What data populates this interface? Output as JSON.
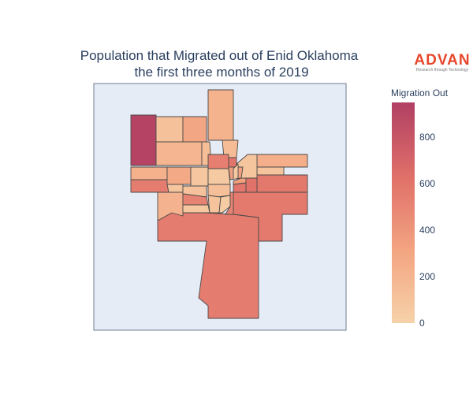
{
  "title_line1": "Population that Migrated out of Enid Oklahoma",
  "title_line2": "the first three months of 2019",
  "logo": {
    "name": "ADVAN",
    "tagline": "Research through Technology"
  },
  "colorbar": {
    "title": "Migration Out",
    "ticks": [
      "0",
      "200",
      "400",
      "600",
      "800"
    ],
    "range": [
      0,
      950
    ],
    "colors": [
      "#f6d2a9",
      "#f3a481",
      "#e07069",
      "#b13f64"
    ]
  },
  "map_background": "#e5ecf6",
  "tracts": [
    {
      "id": "t1",
      "value": 920
    },
    {
      "id": "t2",
      "value": 120
    },
    {
      "id": "t3",
      "value": 300
    },
    {
      "id": "t4",
      "value": 220
    },
    {
      "id": "t5",
      "value": 200
    },
    {
      "id": "t6",
      "value": 140
    },
    {
      "id": "t7",
      "value": 150
    },
    {
      "id": "t8",
      "value": 60
    },
    {
      "id": "t9",
      "value": 540
    },
    {
      "id": "t10",
      "value": 280
    },
    {
      "id": "t11",
      "value": 80
    },
    {
      "id": "t12",
      "value": 600
    },
    {
      "id": "t13",
      "value": 330
    },
    {
      "id": "t14",
      "value": 90
    },
    {
      "id": "t15",
      "value": 110
    },
    {
      "id": "t16",
      "value": 130
    },
    {
      "id": "t17",
      "value": 60
    },
    {
      "id": "t18",
      "value": 350
    },
    {
      "id": "t19",
      "value": 230
    },
    {
      "id": "t20",
      "value": 70
    },
    {
      "id": "t21",
      "value": 210
    },
    {
      "id": "t22",
      "value": 520
    },
    {
      "id": "t23",
      "value": 100
    },
    {
      "id": "t24",
      "value": 40
    },
    {
      "id": "t25",
      "value": 560
    },
    {
      "id": "t26",
      "value": 90
    },
    {
      "id": "t27",
      "value": 520
    },
    {
      "id": "t28",
      "value": 250
    },
    {
      "id": "t29",
      "value": 620
    },
    {
      "id": "t30",
      "value": 100
    },
    {
      "id": "t31",
      "value": 600
    },
    {
      "id": "t32",
      "value": 580
    },
    {
      "id": "t33",
      "value": 570
    },
    {
      "id": "t34",
      "value": 560
    }
  ]
}
